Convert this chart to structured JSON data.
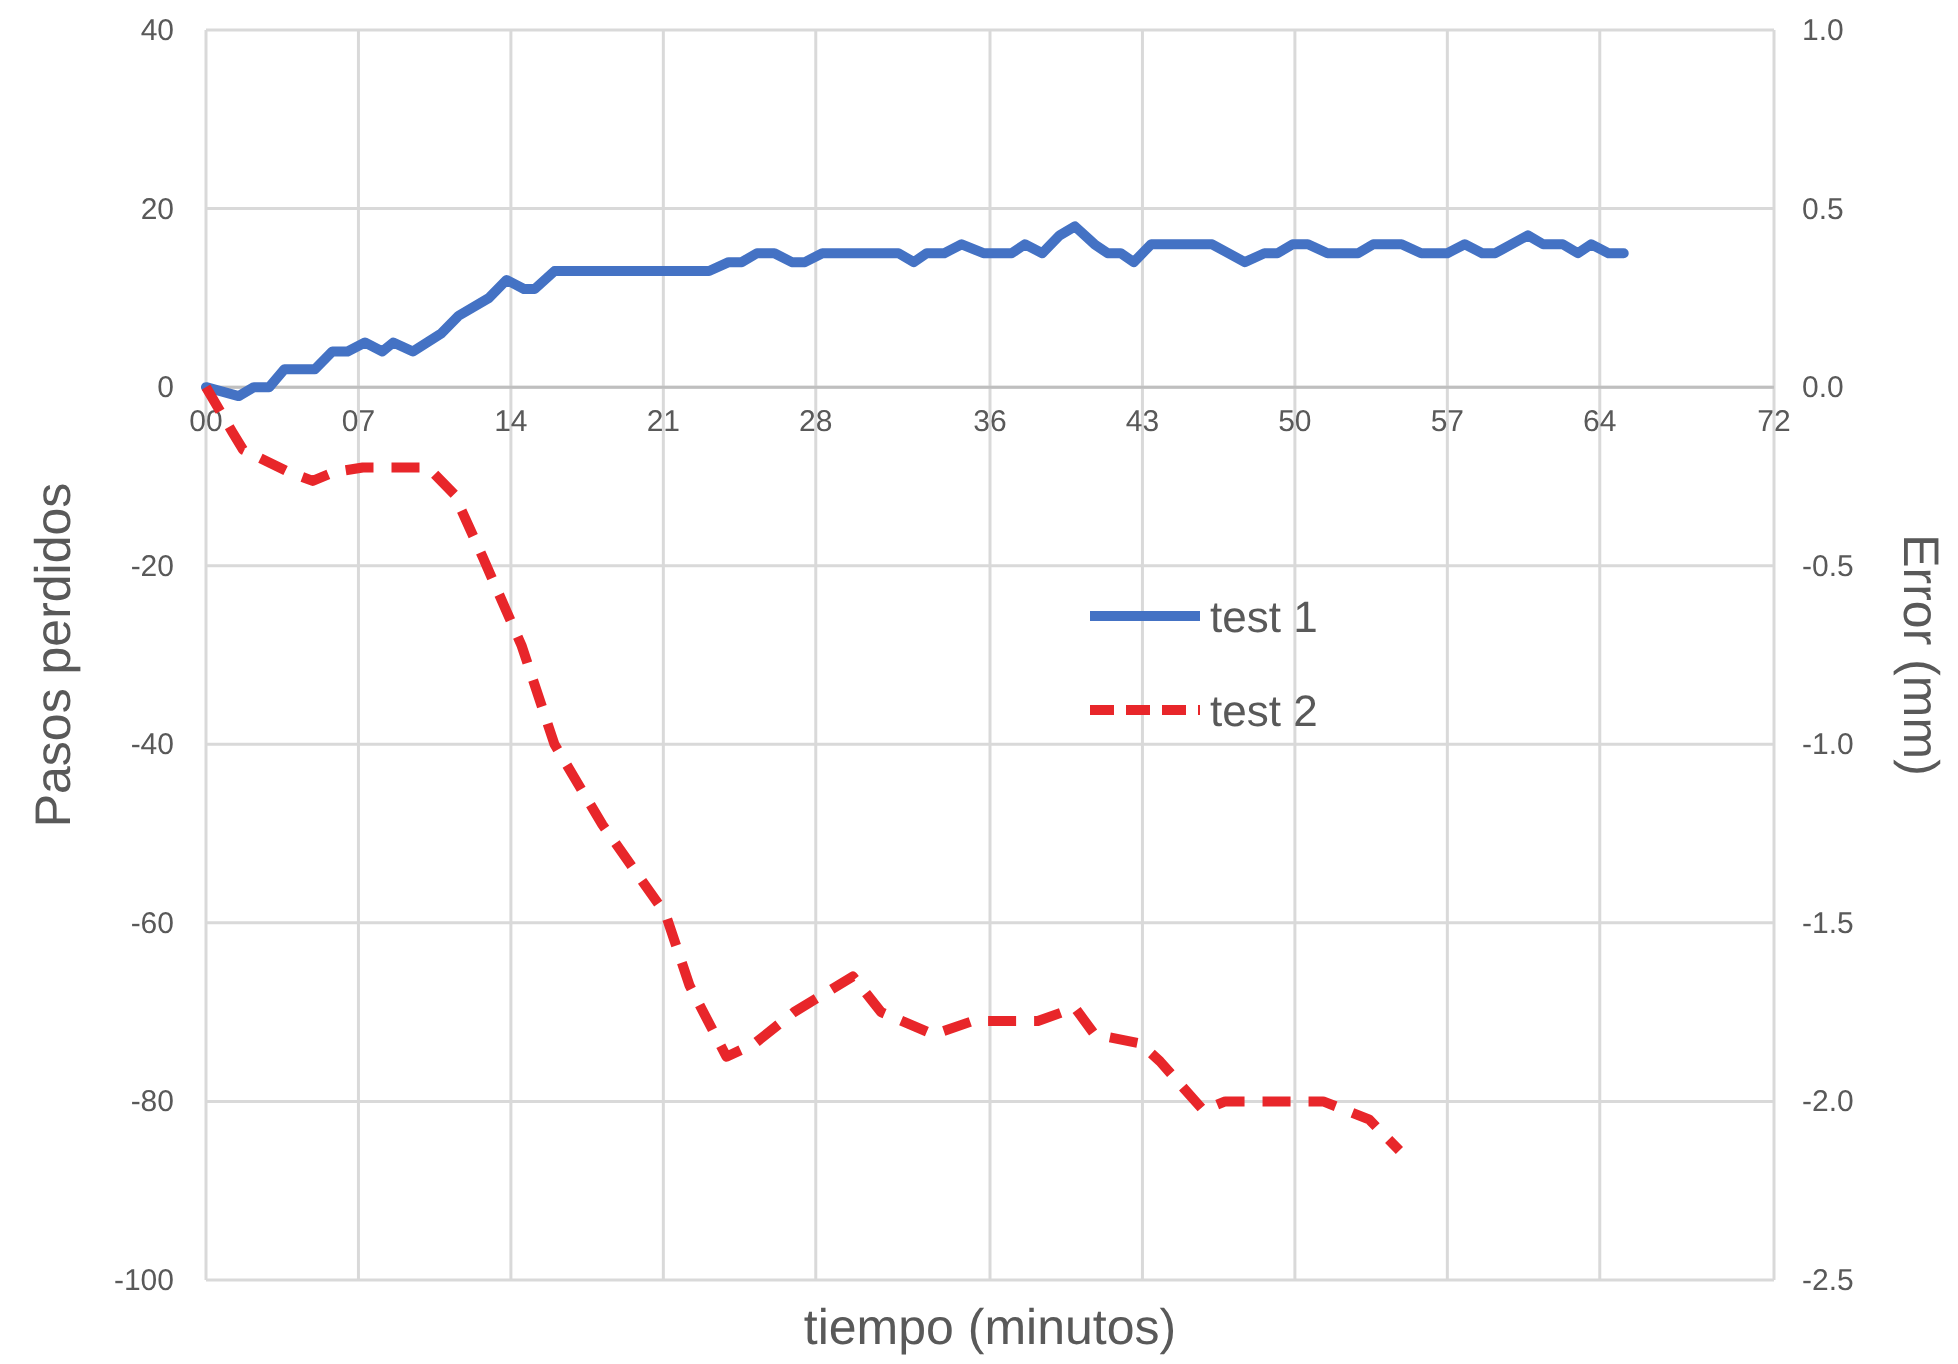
{
  "chart_data": {
    "type": "line",
    "xlabel": "tiempo (minutos)",
    "ylabel": "Pasos perdidos",
    "y2label": "Error (mm)",
    "xlim": [
      0,
      72
    ],
    "xticks": [
      {
        "value": 0,
        "label": "00"
      },
      {
        "value": 7,
        "label": "07"
      },
      14,
      21,
      28,
      36,
      43,
      50,
      57,
      64,
      72
    ],
    "ylim": [
      -100,
      40
    ],
    "yticks": [
      -100,
      -80,
      -60,
      -40,
      -20,
      0,
      20,
      40
    ],
    "y2lim": [
      -2.5,
      1
    ],
    "y2ticks": [
      -2.5,
      {
        "value": -2,
        "label": "-2.0"
      },
      -1.5,
      {
        "value": -1,
        "label": "-1.0"
      },
      -0.5,
      {
        "value": 0,
        "label": "0.0"
      },
      0.5,
      {
        "value": 1,
        "label": "1.0"
      }
    ],
    "grid": true,
    "legend": "right",
    "series": [
      {
        "name": "test 1",
        "color": "#4472c4",
        "line_style": "solid",
        "x": [
          0,
          1.5,
          2.2,
          2.9,
          3.6,
          5,
          5.8,
          6.5,
          7.3,
          8.1,
          8.6,
          9.5,
          10.8,
          11.6,
          13,
          13.8,
          14.6,
          15.1,
          16,
          23.1,
          24,
          24.6,
          25.3,
          26.1,
          26.9,
          27.5,
          28.3,
          31.8,
          32.5,
          33.1,
          33.9,
          34.7,
          35.7,
          37,
          37.6,
          38.4,
          39.2,
          39.9,
          40.8,
          41.4,
          42,
          42.6,
          43.4,
          46.2,
          47.7,
          48.6,
          49.2,
          49.9,
          50.6,
          51.5,
          52.9,
          53.6,
          54.9,
          55.8,
          57,
          57.8,
          58.6,
          59.2,
          60.7,
          61.4,
          62.3,
          63,
          63.6,
          64.4,
          65.1
        ],
        "values": [
          0,
          -1,
          0,
          0,
          2,
          2,
          4,
          4,
          5,
          4,
          5,
          4,
          6,
          8,
          10,
          12,
          11,
          11,
          13,
          13,
          14,
          14,
          15,
          15,
          14,
          14,
          15,
          15,
          14,
          15,
          15,
          16,
          15,
          15,
          16,
          15,
          17,
          18,
          16,
          15,
          15,
          14,
          16,
          16,
          14,
          15,
          15,
          16,
          16,
          15,
          15,
          16,
          16,
          15,
          15,
          16,
          15,
          15,
          17,
          16,
          16,
          15,
          16,
          15,
          15
        ]
      },
      {
        "name": "test 2",
        "color": "#e8262a",
        "line_style": "dashed",
        "x": [
          0,
          1.2,
          1.7,
          3.8,
          4.9,
          5.9,
          7.2,
          10.2,
          11.4,
          12.7,
          14.5,
          16,
          18.2,
          21.1,
          22.2,
          23.9,
          25.2,
          27,
          29.7,
          31,
          33.4,
          35.2,
          38.2,
          39.9,
          40.8,
          42.9,
          43.8,
          45.8,
          46.8,
          51.3,
          53.4,
          54.8
        ],
        "values": [
          0,
          -5,
          -7,
          -9.5,
          -10.5,
          -9.5,
          -9,
          -9,
          -12,
          -19,
          -29,
          -40,
          -49,
          -59,
          -67,
          -75,
          -73.5,
          -70,
          -66,
          -70,
          -72.5,
          -71,
          -71,
          -69.5,
          -72.5,
          -73.5,
          -75.5,
          -81,
          -80,
          -80,
          -82,
          -85.5
        ]
      }
    ]
  }
}
